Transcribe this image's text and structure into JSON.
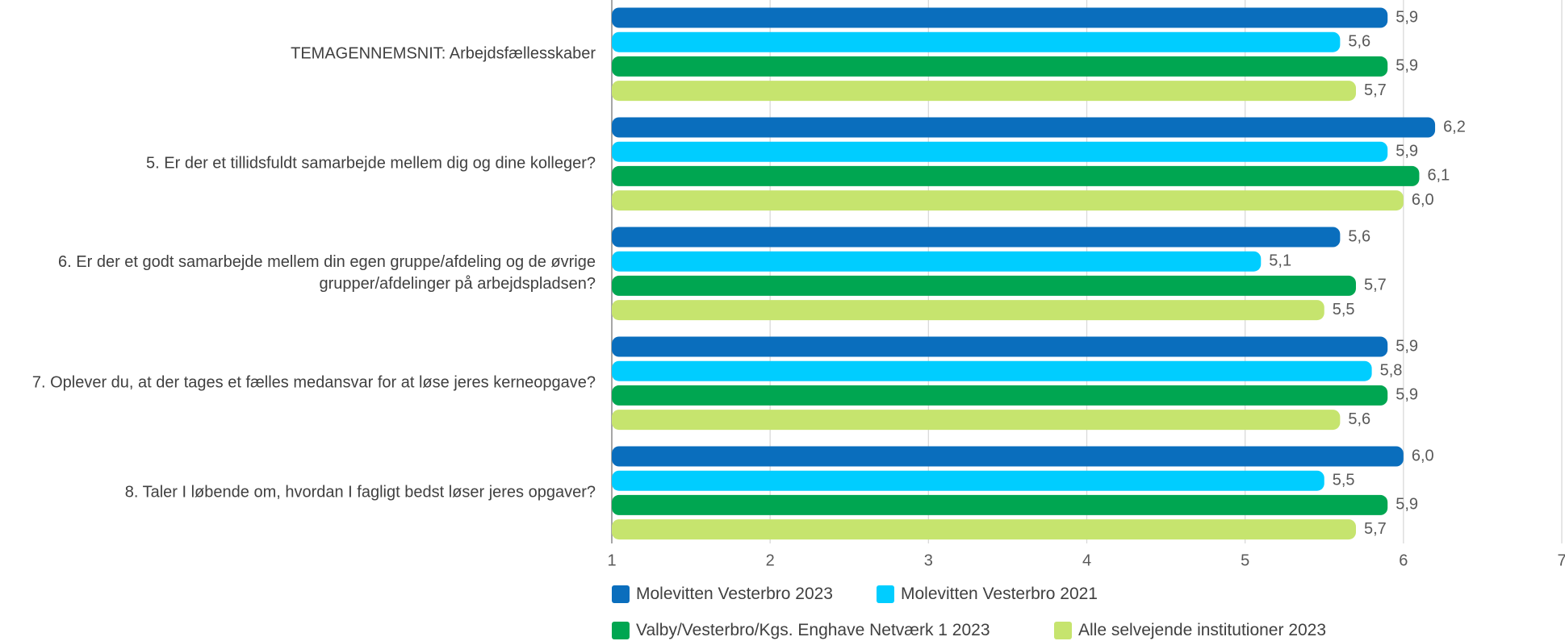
{
  "chart_data": {
    "type": "bar",
    "orientation": "horizontal",
    "categories": [
      "TEMAGENNEMSNIT: Arbejdsfællesskaber",
      "5. Er der et tillidsfuldt samarbejde mellem dig og dine kolleger?",
      "6. Er der et godt samarbejde mellem din egen gruppe/afdeling og de øvrige grupper/afdelinger på arbejdspladsen?",
      "7. Oplever du, at der tages et fælles medansvar for at løse jeres kerneopgave?",
      "8. Taler I løbende om, hvordan I fagligt bedst løser jeres opgaver?"
    ],
    "series": [
      {
        "name": "Molevitten Vesterbro 2023",
        "color": "#0a6ebd",
        "values": [
          5.9,
          6.2,
          5.6,
          5.9,
          6.0
        ],
        "value_labels": [
          "5,9",
          "6,2",
          "5,6",
          "5,9",
          "6,0"
        ]
      },
      {
        "name": "Molevitten Vesterbro 2021",
        "color": "#00cdff",
        "values": [
          5.6,
          5.9,
          5.1,
          5.8,
          5.5
        ],
        "value_labels": [
          "5,6",
          "5,9",
          "5,1",
          "5,8",
          "5,5"
        ]
      },
      {
        "name": "Valby/Vesterbro/Kgs. Enghave Netværk 1 2023",
        "color": "#00a651",
        "values": [
          5.9,
          6.1,
          5.7,
          5.9,
          5.9
        ],
        "value_labels": [
          "5,9",
          "6,1",
          "5,7",
          "5,9",
          "5,9"
        ]
      },
      {
        "name": "Alle selvejende institutioner 2023",
        "color": "#c6e46e",
        "values": [
          5.7,
          6.0,
          5.5,
          5.6,
          5.7
        ],
        "value_labels": [
          "5,7",
          "6,0",
          "5,5",
          "5,6",
          "5,7"
        ]
      }
    ],
    "xlim": [
      1,
      7
    ],
    "xticks": [
      1,
      2,
      3,
      4,
      5,
      6,
      7
    ],
    "grid": true
  }
}
